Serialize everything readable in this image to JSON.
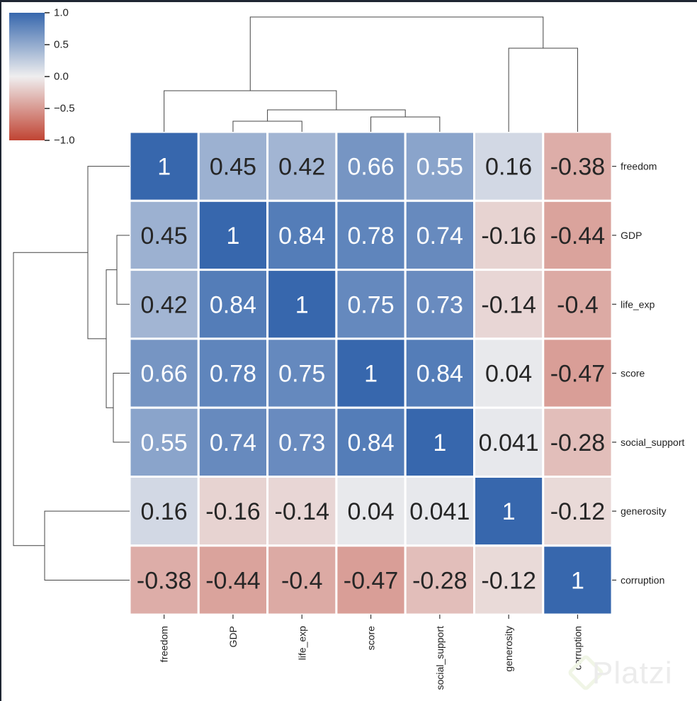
{
  "chart_data": {
    "type": "heatmap",
    "subtype": "clustermap",
    "labels": [
      "freedom",
      "GDP",
      "life_exp",
      "score",
      "social_support",
      "generosity",
      "corruption"
    ],
    "matrix": [
      [
        1,
        0.45,
        0.42,
        0.66,
        0.55,
        0.16,
        -0.38
      ],
      [
        0.45,
        1,
        0.84,
        0.78,
        0.74,
        -0.16,
        -0.44
      ],
      [
        0.42,
        0.84,
        1,
        0.75,
        0.73,
        -0.14,
        -0.4
      ],
      [
        0.66,
        0.78,
        0.75,
        1,
        0.84,
        0.04,
        -0.47
      ],
      [
        0.55,
        0.74,
        0.73,
        0.84,
        1,
        0.041,
        -0.28
      ],
      [
        0.16,
        -0.16,
        -0.14,
        0.04,
        0.041,
        1,
        -0.12
      ],
      [
        -0.38,
        -0.44,
        -0.4,
        -0.47,
        -0.28,
        -0.12,
        1
      ]
    ],
    "annotations": [
      [
        "1",
        "0.45",
        "0.42",
        "0.66",
        "0.55",
        "0.16",
        "-0.38"
      ],
      [
        "0.45",
        "1",
        "0.84",
        "0.78",
        "0.74",
        "-0.16",
        "-0.44"
      ],
      [
        "0.42",
        "0.84",
        "1",
        "0.75",
        "0.73",
        "-0.14",
        "-0.4"
      ],
      [
        "0.66",
        "0.78",
        "0.75",
        "1",
        "0.84",
        "0.04",
        "-0.47"
      ],
      [
        "0.55",
        "0.74",
        "0.73",
        "0.84",
        "1",
        "0.041",
        "-0.28"
      ],
      [
        "0.16",
        "-0.16",
        "-0.14",
        "0.04",
        "0.041",
        "1",
        "-0.12"
      ],
      [
        "-0.38",
        "-0.44",
        "-0.4",
        "-0.47",
        "-0.28",
        "-0.12",
        "1"
      ]
    ],
    "colorbar": {
      "ticks": [
        "1.0",
        "0.5",
        "0.0",
        "−0.5",
        "−1.0"
      ],
      "range": [
        -1,
        1
      ]
    },
    "colors": {
      "high": "#3767ad",
      "mid": "#efeeef",
      "low": "#c04433"
    },
    "dendrogram_merges": [
      {
        "a": "GDP",
        "b": "life_exp",
        "height": 0.16
      },
      {
        "a": "score",
        "b": "social_support",
        "height": 0.16
      },
      {
        "a": "GDP+life_exp",
        "b": "score+social_support",
        "height": 0.26
      },
      {
        "a": "freedom",
        "b": "GDP+life_exp+score+social_support",
        "height": 0.59
      },
      {
        "a": "generosity",
        "b": "corruption",
        "height": 1.12
      },
      {
        "a": "cluster1",
        "b": "cluster2",
        "height": 1.57
      }
    ]
  },
  "watermark": "Platzi"
}
